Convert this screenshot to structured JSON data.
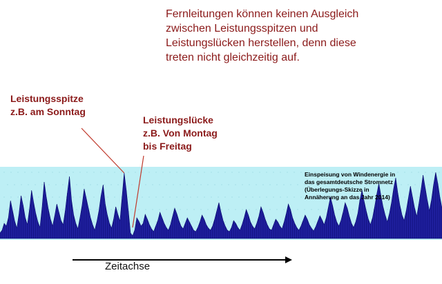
{
  "slide": {
    "title_lines": [
      "Fernleitungen können keinen Ausgleich",
      "zwischen Leistungsspitzen und",
      "Leistungslücken herstellen, denn diese",
      "treten nicht gleichzeitig auf."
    ],
    "spike_label": [
      "Leistungsspitze",
      "z.B. am Sonntag"
    ],
    "gap_label": [
      "Leistungslücke",
      "z.B.  Von Montag",
      "bis Freitag"
    ],
    "legend_note": [
      "Einspeisung von Windenergie in",
      "das gesamtdeutsche  Stromnetz",
      "(Überlegungs-Skizze in",
      "Annäherung  an das Jahr 2014)"
    ],
    "axis_label": "Zeitachse"
  },
  "colors": {
    "title": "#8b1a1a",
    "band": "#bdeff5",
    "series": "#1f1f9e",
    "series_edge": "#0a0a6e",
    "pointer": "#c0392b"
  },
  "chart_data": {
    "type": "area",
    "title": "",
    "xlabel": "Zeitachse",
    "ylabel": "",
    "series": [
      {
        "name": "Einspeisung von Windenergie",
        "values": [
          0.08,
          0.12,
          0.22,
          0.18,
          0.3,
          0.55,
          0.4,
          0.25,
          0.15,
          0.35,
          0.62,
          0.48,
          0.3,
          0.2,
          0.42,
          0.7,
          0.52,
          0.36,
          0.24,
          0.16,
          0.45,
          0.82,
          0.6,
          0.42,
          0.28,
          0.18,
          0.33,
          0.5,
          0.38,
          0.26,
          0.2,
          0.4,
          0.66,
          0.9,
          0.55,
          0.34,
          0.22,
          0.14,
          0.3,
          0.48,
          0.72,
          0.58,
          0.44,
          0.3,
          0.2,
          0.12,
          0.24,
          0.4,
          0.62,
          0.78,
          0.5,
          0.34,
          0.22,
          0.15,
          0.28,
          0.46,
          0.35,
          0.25,
          0.6,
          0.95,
          0.7,
          0.4,
          0.08,
          0.04,
          0.12,
          0.3,
          0.25,
          0.18,
          0.22,
          0.35,
          0.28,
          0.2,
          0.14,
          0.1,
          0.18,
          0.26,
          0.38,
          0.3,
          0.22,
          0.16,
          0.12,
          0.2,
          0.32,
          0.44,
          0.36,
          0.26,
          0.18,
          0.14,
          0.22,
          0.3,
          0.24,
          0.18,
          0.12,
          0.1,
          0.16,
          0.24,
          0.34,
          0.28,
          0.2,
          0.15,
          0.12,
          0.18,
          0.28,
          0.4,
          0.52,
          0.38,
          0.26,
          0.18,
          0.12,
          0.1,
          0.16,
          0.26,
          0.22,
          0.16,
          0.12,
          0.2,
          0.3,
          0.42,
          0.34,
          0.24,
          0.18,
          0.14,
          0.22,
          0.32,
          0.46,
          0.38,
          0.28,
          0.2,
          0.14,
          0.12,
          0.2,
          0.28,
          0.24,
          0.18,
          0.14,
          0.24,
          0.36,
          0.5,
          0.42,
          0.3,
          0.22,
          0.16,
          0.12,
          0.18,
          0.26,
          0.34,
          0.28,
          0.2,
          0.15,
          0.11,
          0.17,
          0.25,
          0.33,
          0.27,
          0.2,
          0.3,
          0.45,
          0.6,
          0.48,
          0.34,
          0.24,
          0.18,
          0.26,
          0.38,
          0.52,
          0.44,
          0.32,
          0.22,
          0.16,
          0.24,
          0.36,
          0.56,
          0.7,
          0.54,
          0.4,
          0.28,
          0.2,
          0.3,
          0.46,
          0.64,
          0.8,
          0.62,
          0.46,
          0.34,
          0.24,
          0.36,
          0.52,
          0.72,
          0.88,
          0.66,
          0.48,
          0.34,
          0.26,
          0.4,
          0.58,
          0.76,
          0.6,
          0.44,
          0.32,
          0.5,
          0.7,
          0.92,
          0.74,
          0.56,
          0.4,
          0.56,
          0.78,
          0.96,
          0.8,
          0.6,
          0.44
        ],
        "fill": true
      }
    ],
    "annotations": [
      {
        "text": "Leistungsspitze z.B. am Sonntag",
        "target_index": 59
      },
      {
        "text": "Leistungslücke z.B.  Von Montag bis Freitag",
        "target_index": 63
      }
    ],
    "ylim": [
      0,
      1
    ],
    "grid": false,
    "legend": "right"
  }
}
